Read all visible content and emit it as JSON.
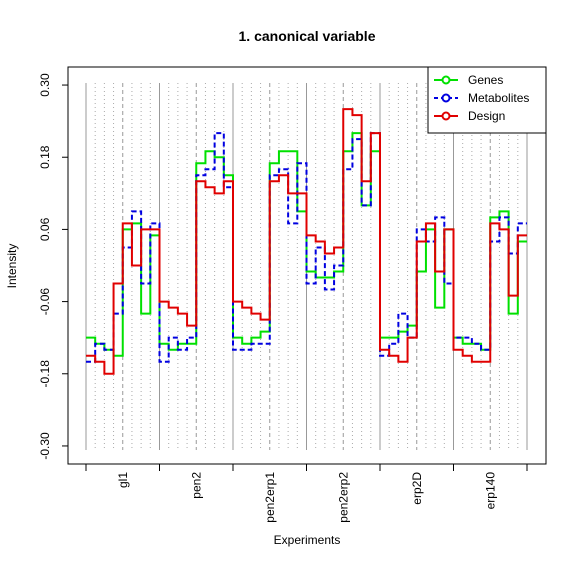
{
  "chart_data": {
    "type": "line",
    "step": true,
    "title": "1. canonical variable",
    "xlabel": "Experiments",
    "ylabel": "Intensity",
    "ylim": [
      -0.33,
      0.33
    ],
    "yticks": [
      "0.30",
      "0.18",
      "0.06",
      "-0.06",
      "-0.18",
      "-0.30"
    ],
    "ytick_values": [
      0.3,
      0.18,
      0.06,
      -0.06,
      -0.18,
      -0.3
    ],
    "groups": [
      "gl1",
      "pen2",
      "pen2erp1",
      "pen2erp2",
      "erp2D",
      "erp140"
    ],
    "samples_per_group": 8,
    "subgroups_per_group": 2,
    "legend_position": "top-right",
    "series": [
      {
        "name": "Genes",
        "color": "#00e000",
        "dash": "solid",
        "values": [
          -0.12,
          -0.13,
          -0.14,
          -0.15,
          0.06,
          0.07,
          -0.08,
          0.05,
          -0.13,
          -0.14,
          -0.13,
          -0.13,
          0.17,
          0.19,
          0.18,
          0.15,
          -0.12,
          -0.13,
          -0.12,
          -0.11,
          0.17,
          0.19,
          0.19,
          0.09,
          -0.01,
          -0.02,
          -0.02,
          -0.01,
          0.19,
          0.22,
          0.1,
          0.19,
          -0.12,
          -0.12,
          -0.11,
          -0.1,
          -0.01,
          0.06,
          -0.07,
          0.06,
          -0.12,
          -0.13,
          -0.13,
          -0.14,
          0.08,
          0.09,
          -0.08,
          0.04
        ]
      },
      {
        "name": "Metabolites",
        "color": "#0000e0",
        "dash": "dashed",
        "values": [
          -0.16,
          -0.13,
          -0.14,
          -0.08,
          0.03,
          0.09,
          -0.03,
          0.07,
          -0.16,
          -0.12,
          -0.14,
          -0.12,
          0.15,
          0.16,
          0.22,
          0.13,
          -0.14,
          -0.14,
          -0.13,
          -0.13,
          0.15,
          0.16,
          0.07,
          0.17,
          -0.03,
          0.03,
          -0.04,
          0.0,
          0.16,
          0.21,
          0.1,
          0.22,
          -0.15,
          -0.13,
          -0.08,
          -0.12,
          0.06,
          0.04,
          0.08,
          -0.03,
          -0.12,
          -0.12,
          -0.13,
          -0.14,
          0.04,
          0.08,
          0.02,
          0.07
        ]
      },
      {
        "name": "Design",
        "color": "#e00000",
        "dash": "solid",
        "values": [
          -0.15,
          -0.16,
          -0.18,
          -0.03,
          0.07,
          0.0,
          0.06,
          0.06,
          -0.06,
          -0.07,
          -0.08,
          -0.1,
          0.14,
          0.13,
          0.12,
          0.14,
          -0.06,
          -0.07,
          -0.08,
          -0.09,
          0.14,
          0.15,
          0.12,
          0.12,
          0.05,
          0.04,
          0.02,
          0.03,
          0.26,
          0.25,
          0.14,
          0.22,
          -0.14,
          -0.15,
          -0.16,
          -0.12,
          0.04,
          0.07,
          -0.01,
          0.06,
          -0.14,
          -0.15,
          -0.16,
          -0.16,
          0.07,
          0.06,
          -0.05,
          0.05
        ]
      }
    ]
  }
}
